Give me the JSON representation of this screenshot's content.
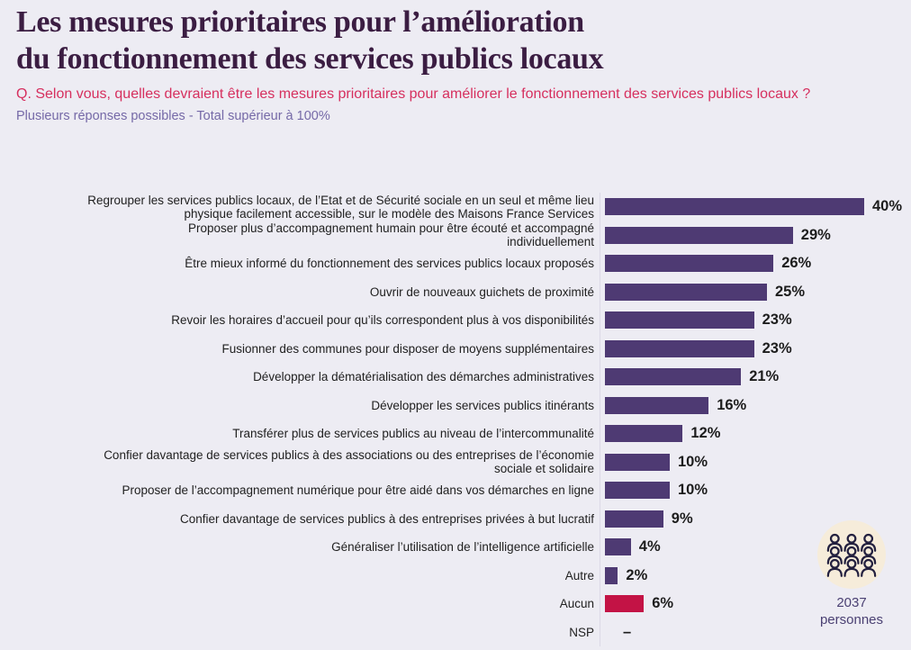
{
  "header": {
    "title_line1": "Les mesures prioritaires pour l’amélioration",
    "title_line2": "du fonctionnement des services publics locaux",
    "question": "Q. Selon vous, quelles devraient être les mesures prioritaires pour améliorer le fonctionnement des services publics locaux ?",
    "note": "Plusieurs réponses possibles - Total supérieur à 100%"
  },
  "chart_data": {
    "type": "bar",
    "orientation": "horizontal",
    "title": "Les mesures prioritaires pour l’amélioration du fonctionnement des services publics locaux",
    "categories": [
      "Regrouper les services publics locaux, de l’Etat et de Sécurité sociale en un seul et même lieu\nphysique facilement accessible, sur le modèle des Maisons France Services",
      "Proposer plus d’accompagnement humain pour être écouté et accompagné\nindividuellement",
      "Être mieux informé du fonctionnement des services publics locaux proposés",
      "Ouvrir de nouveaux guichets de proximité",
      "Revoir les horaires d’accueil pour qu’ils correspondent plus à vos disponibilités",
      "Fusionner des communes pour disposer de moyens supplémentaires",
      "Développer la dématérialisation des démarches administratives",
      "Développer les services publics itinérants",
      "Transférer plus de services publics au niveau de l’intercommunalité",
      "Confier davantage de services publics à des associations ou des entreprises de l’économie\nsociale et solidaire",
      "Proposer de l’accompagnement numérique pour être aidé dans vos démarches en ligne",
      "Confier davantage de services publics à des entreprises privées à but lucratif",
      "Généraliser l’utilisation de l’intelligence artificielle",
      "Autre",
      "Aucun",
      "NSP"
    ],
    "values": [
      40,
      29,
      26,
      25,
      23,
      23,
      21,
      16,
      12,
      10,
      10,
      9,
      4,
      2,
      6,
      null
    ],
    "value_labels": [
      "40%",
      "29%",
      "26%",
      "25%",
      "23%",
      "23%",
      "21%",
      "16%",
      "12%",
      "10%",
      "10%",
      "9%",
      "4%",
      "2%",
      "6%",
      "–"
    ],
    "bar_colors": [
      "#4e3a73",
      "#4e3a73",
      "#4e3a73",
      "#4e3a73",
      "#4e3a73",
      "#4e3a73",
      "#4e3a73",
      "#4e3a73",
      "#4e3a73",
      "#4e3a73",
      "#4e3a73",
      "#4e3a73",
      "#4e3a73",
      "#4e3a73",
      "#c31345",
      null
    ],
    "xlim": [
      0,
      40
    ],
    "legend": false,
    "grid": false
  },
  "sample": {
    "count": "2037",
    "label": "personnes",
    "icon": "people-group-icon"
  },
  "colors": {
    "background": "#edecf3",
    "title": "#3b1d42",
    "question": "#d62f5e",
    "note": "#7569a7",
    "bar": "#4e3a73",
    "highlight": "#c31345",
    "icon_circle": "#f6ecda",
    "icon_stroke": "#23203f"
  }
}
